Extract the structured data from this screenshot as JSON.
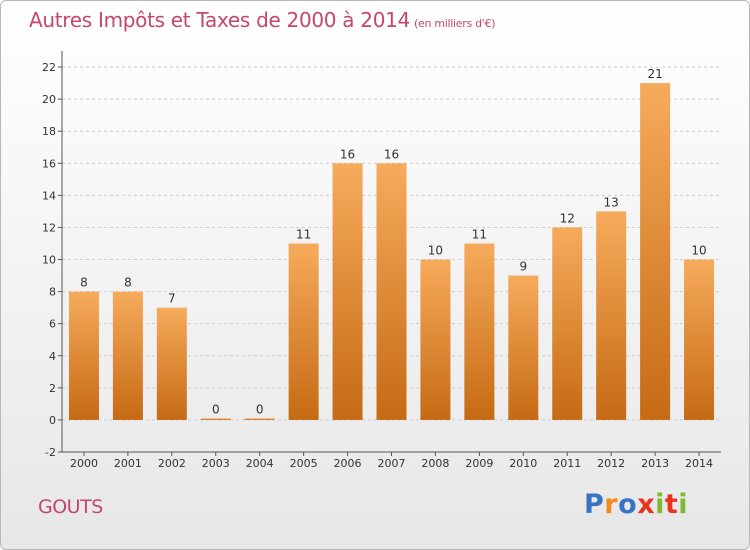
{
  "header": {
    "title": "Autres Impôts et Taxes de 2000 à 2014",
    "subtitle": "(en milliers d'€)"
  },
  "footer": {
    "commune": "GOUTS",
    "brand": "Proxiti",
    "brand_colors": [
      "#3b73c4",
      "#f08a1c",
      "#3b73c4",
      "#e8341c",
      "#7fb934",
      "#e8341c",
      "#7fb934"
    ]
  },
  "colors": {
    "bar_top": "#f6ab5c",
    "bar_bottom": "#c66a14",
    "title": "#c4476d",
    "grid": "#cccccc"
  },
  "chart_data": {
    "type": "bar",
    "categories": [
      "2000",
      "2001",
      "2002",
      "2003",
      "2004",
      "2005",
      "2006",
      "2007",
      "2008",
      "2009",
      "2010",
      "2011",
      "2012",
      "2013",
      "2014"
    ],
    "values": [
      8,
      8,
      7,
      0,
      0,
      11,
      16,
      16,
      10,
      11,
      9,
      12,
      13,
      21,
      10
    ],
    "ylim": [
      -2,
      23
    ],
    "yticks": [
      -2,
      0,
      2,
      4,
      6,
      8,
      10,
      12,
      14,
      16,
      18,
      20,
      22
    ],
    "grid": "horizontal dashed",
    "legend": "none"
  }
}
